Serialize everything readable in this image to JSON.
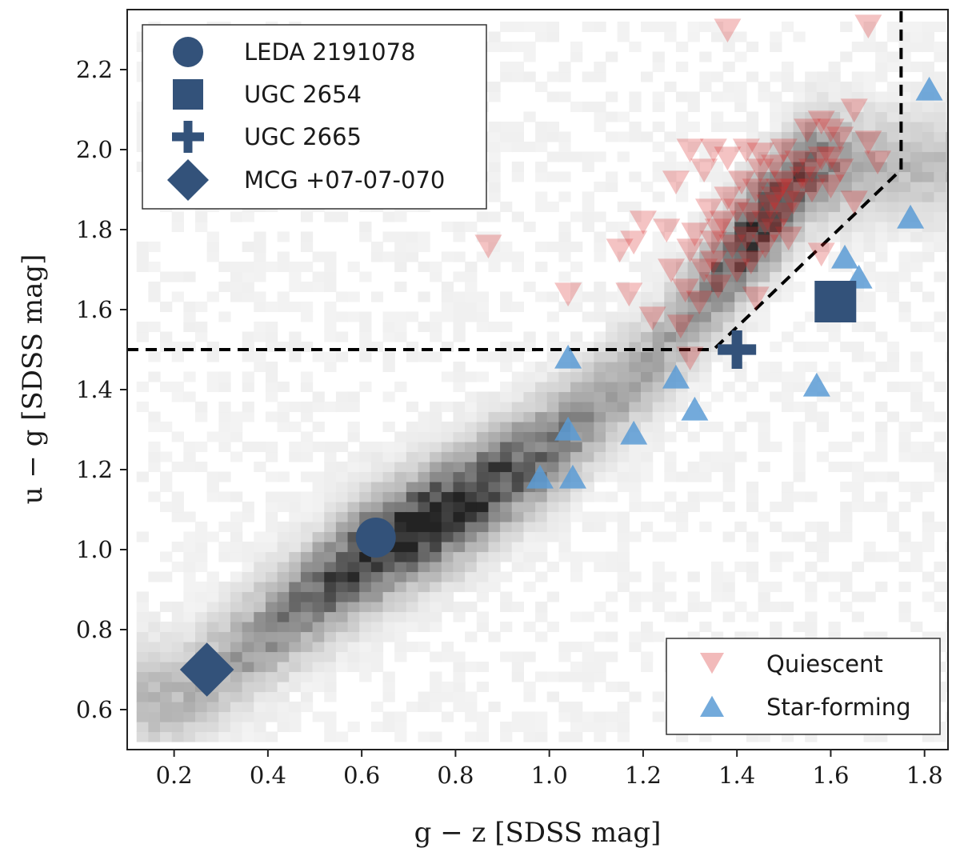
{
  "chart_data": {
    "type": "scatter",
    "xlabel": "g − z    [SDSS mag]",
    "ylabel": "u − g    [SDSS mag]",
    "xlim": [
      0.1,
      1.85
    ],
    "ylim": [
      0.5,
      2.35
    ],
    "xticks": [
      0.2,
      0.4,
      0.6,
      0.8,
      1.0,
      1.2,
      1.4,
      1.6,
      1.8
    ],
    "xtick_labels": [
      "0.2",
      "0.4",
      "0.6",
      "0.8",
      "1.0",
      "1.2",
      "1.4",
      "1.6",
      "1.8"
    ],
    "yticks": [
      0.6,
      0.8,
      1.0,
      1.2,
      1.4,
      1.6,
      1.8,
      2.0,
      2.2
    ],
    "ytick_labels": [
      "0.6",
      "0.8",
      "1.0",
      "1.2",
      "1.4",
      "1.6",
      "1.8",
      "2.0",
      "2.2"
    ],
    "colors": {
      "navy": "#33527a",
      "quiescent": "#d62728",
      "quiescent_light": "#e8a3a3",
      "starforming": "#5b9bd5",
      "line": "#000000"
    },
    "density_background": {
      "description_hidden": true,
      "ridge": [
        [
          0.2,
          0.62
        ],
        [
          0.6,
          0.98
        ],
        [
          0.8,
          1.1
        ],
        [
          1.0,
          1.25
        ],
        [
          1.2,
          1.45
        ],
        [
          1.4,
          1.75
        ],
        [
          1.55,
          1.95
        ]
      ]
    },
    "boundary_line": {
      "style": "dashed",
      "points": [
        [
          0.1,
          1.5
        ],
        [
          1.35,
          1.5
        ],
        [
          1.75,
          1.95
        ],
        [
          1.75,
          2.35
        ]
      ]
    },
    "highlighted": {
      "legend_entries": [
        {
          "name": "LEDA 2191078",
          "marker": "circle"
        },
        {
          "name": "UGC 2654",
          "marker": "square"
        },
        {
          "name": "UGC 2665",
          "marker": "plus"
        },
        {
          "name": "MCG +07-07-070",
          "marker": "diamond"
        }
      ],
      "points": [
        {
          "name": "LEDA 2191078",
          "marker": "circle",
          "x": 0.63,
          "y": 1.03
        },
        {
          "name": "UGC 2654",
          "marker": "square",
          "x": 1.61,
          "y": 1.62
        },
        {
          "name": "UGC 2665",
          "marker": "plus",
          "x": 1.4,
          "y": 1.5
        },
        {
          "name": "MCG +07-07-070",
          "marker": "diamond",
          "x": 0.27,
          "y": 0.7
        }
      ]
    },
    "series": [
      {
        "name": "Quiescent",
        "marker": "triangle-down",
        "points": [
          [
            0.87,
            1.76
          ],
          [
            1.04,
            1.64
          ],
          [
            1.15,
            1.75
          ],
          [
            1.18,
            1.77
          ],
          [
            1.17,
            1.64
          ],
          [
            1.2,
            1.82
          ],
          [
            1.25,
            1.8
          ],
          [
            1.27,
            1.92
          ],
          [
            1.3,
            2.0
          ],
          [
            1.33,
            1.95
          ],
          [
            1.35,
            2.0
          ],
          [
            1.38,
            1.98
          ],
          [
            1.42,
            2.0
          ],
          [
            1.45,
            1.99
          ],
          [
            1.48,
            1.96
          ],
          [
            1.5,
            2.0
          ],
          [
            1.55,
            2.05
          ],
          [
            1.58,
            2.07
          ],
          [
            1.62,
            2.03
          ],
          [
            1.6,
            2.05
          ],
          [
            1.65,
            2.1
          ],
          [
            1.68,
            2.02
          ],
          [
            1.7,
            1.97
          ],
          [
            1.68,
            2.31
          ],
          [
            1.38,
            2.3
          ],
          [
            1.6,
            1.91
          ],
          [
            1.58,
            1.74
          ],
          [
            1.65,
            1.87
          ],
          [
            1.44,
            1.63
          ],
          [
            1.3,
            1.48
          ],
          [
            1.28,
            1.56
          ],
          [
            1.32,
            1.62
          ],
          [
            1.35,
            1.72
          ],
          [
            1.26,
            1.7
          ],
          [
            1.22,
            1.58
          ],
          [
            1.3,
            1.75
          ],
          [
            1.34,
            1.85
          ],
          [
            1.36,
            1.8
          ],
          [
            1.38,
            1.88
          ],
          [
            1.4,
            1.85
          ],
          [
            1.42,
            1.78
          ],
          [
            1.44,
            1.9
          ],
          [
            1.46,
            1.82
          ],
          [
            1.48,
            1.88
          ],
          [
            1.5,
            1.92
          ],
          [
            1.52,
            1.87
          ],
          [
            1.54,
            1.93
          ],
          [
            1.56,
            1.95
          ],
          [
            1.58,
            1.98
          ],
          [
            1.4,
            1.7
          ],
          [
            1.43,
            1.72
          ],
          [
            1.46,
            1.76
          ],
          [
            1.48,
            1.8
          ],
          [
            1.5,
            1.84
          ],
          [
            1.52,
            1.9
          ],
          [
            1.36,
            1.66
          ],
          [
            1.33,
            1.7
          ],
          [
            1.39,
            1.76
          ],
          [
            1.41,
            1.92
          ],
          [
            1.45,
            1.95
          ],
          [
            1.53,
            1.97
          ],
          [
            1.56,
            1.9
          ],
          [
            1.6,
            1.98
          ],
          [
            1.62,
            1.95
          ],
          [
            1.47,
            1.86
          ],
          [
            1.49,
            1.9
          ],
          [
            1.51,
            1.78
          ],
          [
            1.37,
            1.82
          ],
          [
            1.35,
            1.77
          ],
          [
            1.29,
            1.65
          ],
          [
            1.31,
            1.79
          ],
          [
            1.43,
            1.84
          ]
        ]
      },
      {
        "name": "Star-forming",
        "marker": "triangle-up",
        "points": [
          [
            1.04,
            1.48
          ],
          [
            1.04,
            1.3
          ],
          [
            1.05,
            1.18
          ],
          [
            0.98,
            1.18
          ],
          [
            1.18,
            1.29
          ],
          [
            1.27,
            1.43
          ],
          [
            1.31,
            1.35
          ],
          [
            1.57,
            1.41
          ],
          [
            1.63,
            1.73
          ],
          [
            1.66,
            1.68
          ],
          [
            1.77,
            1.83
          ],
          [
            1.81,
            2.15
          ]
        ]
      }
    ],
    "legend_bottom": [
      {
        "label": "Quiescent",
        "marker": "triangle-down"
      },
      {
        "label": "Star-forming",
        "marker": "triangle-up"
      }
    ]
  }
}
